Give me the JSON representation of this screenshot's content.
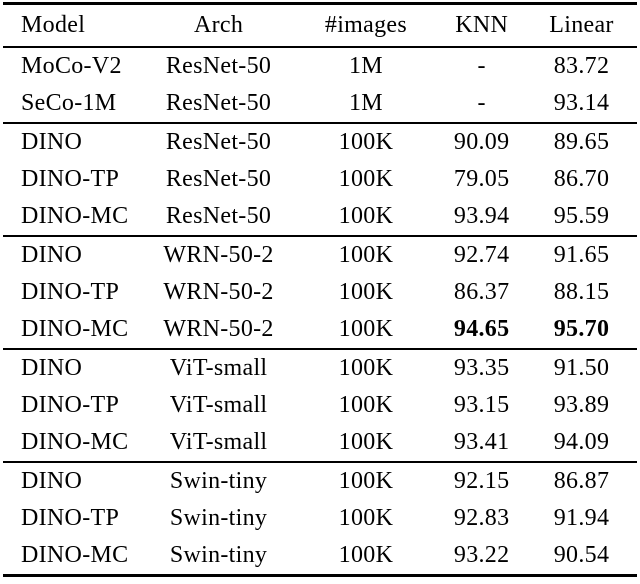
{
  "colors": {
    "background": "#ffffff",
    "text": "#000000",
    "rule": "#000000"
  },
  "table": {
    "columns": [
      {
        "key": "model",
        "label": "Model"
      },
      {
        "key": "arch",
        "label": "Arch"
      },
      {
        "key": "images",
        "label": "#images"
      },
      {
        "key": "knn",
        "label": "KNN"
      },
      {
        "key": "linear",
        "label": "Linear"
      }
    ],
    "sections": [
      {
        "rows": [
          {
            "model": "MoCo-V2",
            "arch": "ResNet-50",
            "images": "1M",
            "knn": "-",
            "linear": "83.72"
          },
          {
            "model": "SeCo-1M",
            "arch": "ResNet-50",
            "images": "1M",
            "knn": "-",
            "linear": "93.14"
          }
        ]
      },
      {
        "rows": [
          {
            "model": "DINO",
            "arch": "ResNet-50",
            "images": "100K",
            "knn": "90.09",
            "linear": "89.65"
          },
          {
            "model": "DINO-TP",
            "arch": "ResNet-50",
            "images": "100K",
            "knn": "79.05",
            "linear": "86.70"
          },
          {
            "model": "DINO-MC",
            "arch": "ResNet-50",
            "images": "100K",
            "knn": "93.94",
            "linear": "95.59"
          }
        ]
      },
      {
        "rows": [
          {
            "model": "DINO",
            "arch": "WRN-50-2",
            "images": "100K",
            "knn": "92.74",
            "linear": "91.65"
          },
          {
            "model": "DINO-TP",
            "arch": "WRN-50-2",
            "images": "100K",
            "knn": "86.37",
            "linear": "88.15"
          },
          {
            "model": "DINO-MC",
            "arch": "WRN-50-2",
            "images": "100K",
            "knn": "94.65",
            "linear": "95.70",
            "knn_bold": true,
            "linear_bold": true
          }
        ]
      },
      {
        "rows": [
          {
            "model": "DINO",
            "arch": "ViT-small",
            "images": "100K",
            "knn": "93.35",
            "linear": "91.50"
          },
          {
            "model": "DINO-TP",
            "arch": "ViT-small",
            "images": "100K",
            "knn": "93.15",
            "linear": "93.89"
          },
          {
            "model": "DINO-MC",
            "arch": "ViT-small",
            "images": "100K",
            "knn": "93.41",
            "linear": "94.09"
          }
        ]
      },
      {
        "rows": [
          {
            "model": "DINO",
            "arch": "Swin-tiny",
            "images": "100K",
            "knn": "92.15",
            "linear": "86.87"
          },
          {
            "model": "DINO-TP",
            "arch": "Swin-tiny",
            "images": "100K",
            "knn": "92.83",
            "linear": "91.94"
          },
          {
            "model": "DINO-MC",
            "arch": "Swin-tiny",
            "images": "100K",
            "knn": "93.22",
            "linear": "90.54"
          }
        ]
      }
    ]
  }
}
